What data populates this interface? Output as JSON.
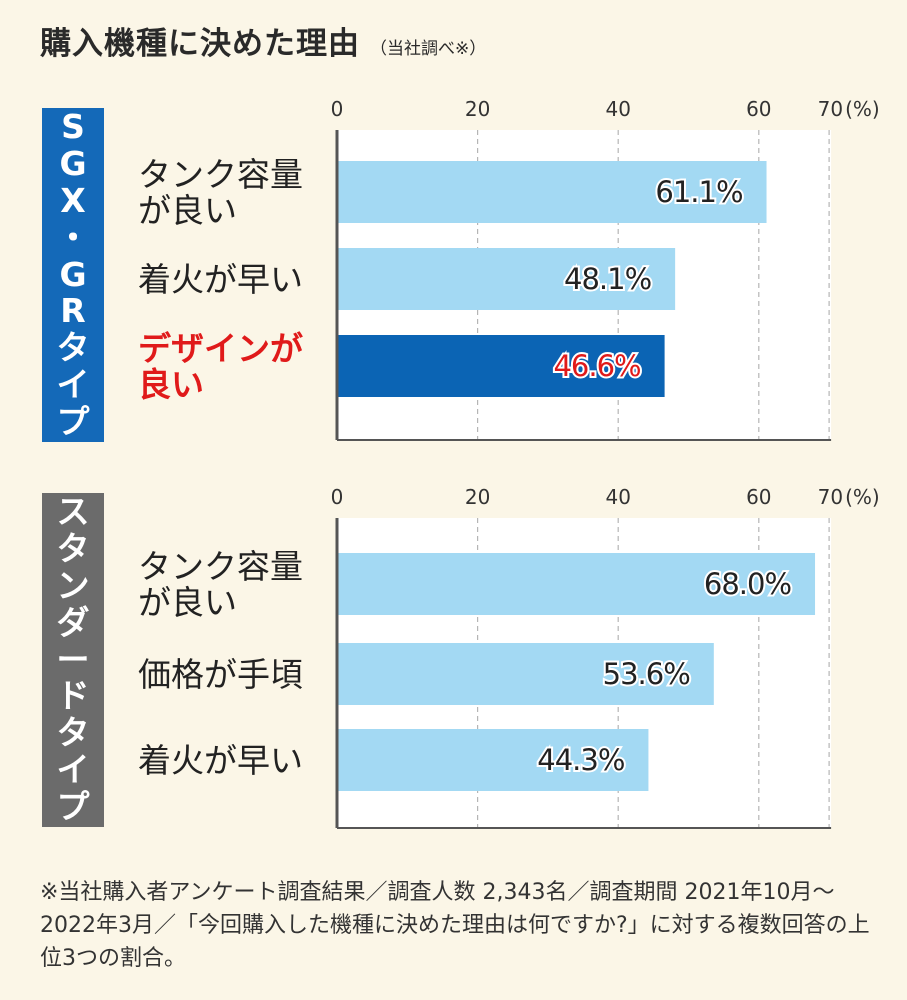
{
  "title": "購入機種に決めた理由",
  "subtitle": "（当社調べ※）",
  "colors": {
    "bar": "#a3d9f3",
    "bar_highlight": "#0b64b4",
    "label_highlight": "#e01a1a",
    "panel1_tag": "#1469b8",
    "panel2_tag": "#6b6b6b",
    "background": "#fbf6e7"
  },
  "chart_data": [
    {
      "type": "bar",
      "orientation": "horizontal",
      "group_label": "SGX・GRタイプ",
      "xlim": [
        0,
        70
      ],
      "ticks": [
        "0",
        "20",
        "40",
        "60",
        "70"
      ],
      "unit": "(%)",
      "grid": true,
      "categories": [
        [
          "タンク容量",
          "が良い"
        ],
        [
          "着火が早い"
        ],
        [
          "デザインが",
          "良い"
        ]
      ],
      "values": [
        61.1,
        48.1,
        46.6
      ],
      "value_labels": [
        "61.1%",
        "48.1%",
        "46.6%"
      ],
      "highlight_index": 2
    },
    {
      "type": "bar",
      "orientation": "horizontal",
      "group_label": "スタンダードタイプ",
      "xlim": [
        0,
        70
      ],
      "ticks": [
        "0",
        "20",
        "40",
        "60",
        "70"
      ],
      "unit": "(%)",
      "grid": true,
      "categories": [
        [
          "タンク容量",
          "が良い"
        ],
        [
          "価格が手頃"
        ],
        [
          "着火が早い"
        ]
      ],
      "values": [
        68.0,
        53.6,
        44.3
      ],
      "value_labels": [
        "68.0%",
        "53.6%",
        "44.3%"
      ],
      "highlight_index": -1
    }
  ],
  "footnote": "※当社購入者アンケート調査結果／調査人数 2,343名／調査期間 2021年10月～2022年3月／「今回購入した機種に決めた理由は何ですか?」に対する複数回答の上位3つの割合。"
}
